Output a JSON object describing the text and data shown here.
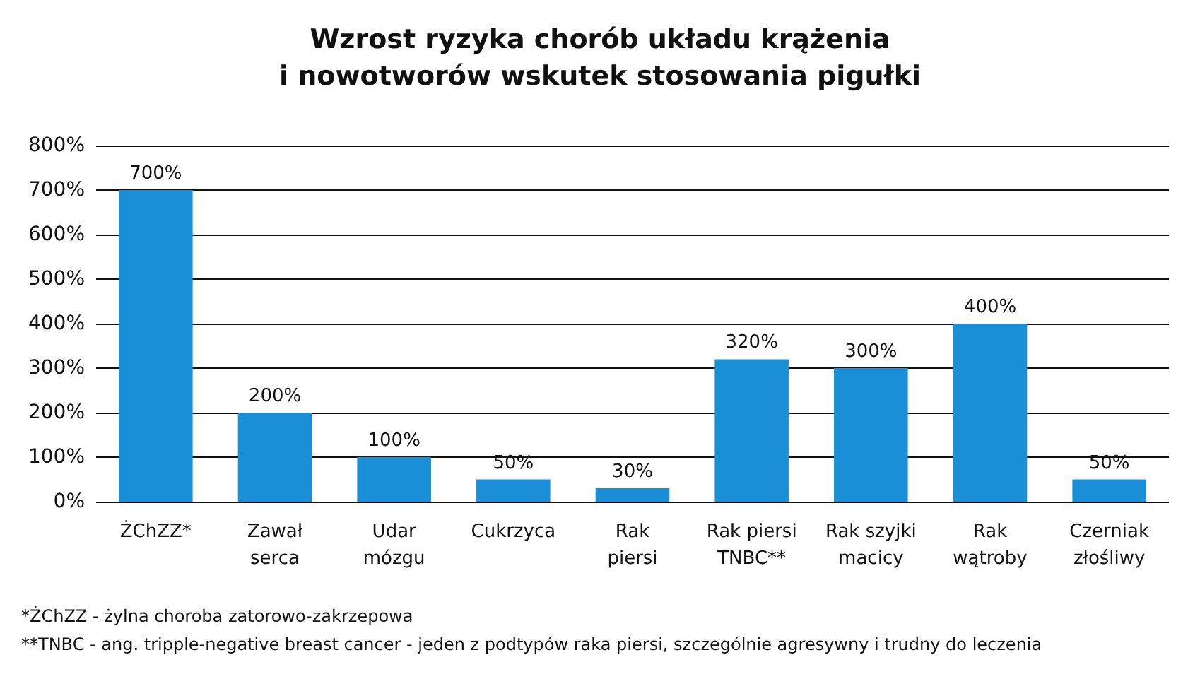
{
  "chart_data": {
    "type": "bar",
    "title": "Wzrost ryzyka chorób układu krążenia\ni nowotworów wskutek stosowania pigułki",
    "categories": [
      "ŻChZZ*",
      "Zawał\nserca",
      "Udar\nmózgu",
      "Cukrzyca",
      "Rak\npiersi",
      "Rak piersi\nTNBC**",
      "Rak szyjki\nmacicy",
      "Rak\nwątroby",
      "Czerniak\nzłośliwy"
    ],
    "values": [
      700,
      200,
      100,
      50,
      30,
      320,
      300,
      400,
      50
    ],
    "value_labels": [
      "700%",
      "200%",
      "100%",
      "50%",
      "30%",
      "320%",
      "300%",
      "400%",
      "50%"
    ],
    "color": "#1a8fd8",
    "ylim": [
      0,
      800
    ],
    "yticks": [
      {
        "value": 0,
        "label": "0%"
      },
      {
        "value": 100,
        "label": "100%"
      },
      {
        "value": 200,
        "label": "200%"
      },
      {
        "value": 300,
        "label": "300%"
      },
      {
        "value": 400,
        "label": "400%"
      },
      {
        "value": 500,
        "label": "500%"
      },
      {
        "value": 600,
        "label": "600%"
      },
      {
        "value": 700,
        "label": "700%"
      },
      {
        "value": 800,
        "label": "800%"
      }
    ],
    "grid": "y",
    "annotations": [
      "*ŻChZZ - żylna choroba zatorowo-zakrzepowa",
      "**TNBC - ang. tripple-negative breast cancer - jeden z podtypów raka piersi, szczególnie agresywny i trudny do leczenia"
    ]
  }
}
